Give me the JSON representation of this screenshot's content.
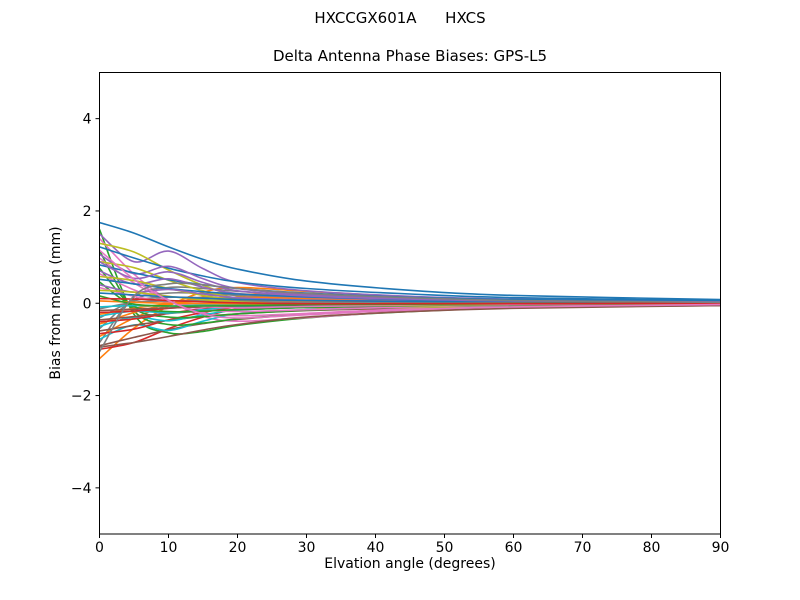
{
  "chart_data": {
    "type": "line",
    "suptitle": "HXCCGX601A      HXCS",
    "title": "Delta Antenna Phase Biases: GPS-L5",
    "xlabel": "Elvation angle (degrees)",
    "ylabel": "Bias from mean (mm)",
    "xlim": [
      0,
      90
    ],
    "ylim": [
      -5,
      5
    ],
    "xticks": [
      0,
      10,
      20,
      30,
      40,
      50,
      60,
      70,
      80,
      90
    ],
    "yticks": [
      -4,
      -2,
      0,
      2,
      4
    ],
    "grid": false,
    "legend": "none",
    "axis_color": "#000000",
    "background": "#ffffff",
    "line_width": 1.6,
    "x": [
      0,
      5,
      10,
      15,
      20,
      30,
      45,
      60,
      90
    ],
    "series": [
      {
        "name": "line-01",
        "color": "#1f77b4",
        "values": [
          1.75,
          1.52,
          1.22,
          0.95,
          0.74,
          0.48,
          0.28,
          0.17,
          0.08
        ]
      },
      {
        "name": "line-02",
        "color": "#ff7f0e",
        "values": [
          -1.2,
          -0.54,
          -0.06,
          0.24,
          0.34,
          0.26,
          0.14,
          0.08,
          0.04
        ]
      },
      {
        "name": "line-03",
        "color": "#2ca02c",
        "values": [
          1.6,
          -0.24,
          -0.64,
          -0.61,
          -0.48,
          -0.32,
          -0.18,
          -0.1,
          -0.03
        ]
      },
      {
        "name": "line-04",
        "color": "#d62728",
        "values": [
          -1.0,
          -0.85,
          -0.55,
          -0.3,
          -0.12,
          0.06,
          0.1,
          0.05,
          0.02
        ]
      },
      {
        "name": "line-05",
        "color": "#9467bd",
        "values": [
          1.5,
          0.9,
          1.13,
          0.75,
          0.45,
          0.27,
          0.15,
          0.09,
          0.05
        ]
      },
      {
        "name": "line-06",
        "color": "#8c564b",
        "values": [
          -0.92,
          -0.74,
          -0.57,
          -0.44,
          -0.35,
          -0.24,
          -0.15,
          -0.09,
          -0.05
        ]
      },
      {
        "name": "line-07",
        "color": "#e377c2",
        "values": [
          1.4,
          0.63,
          0.07,
          -0.28,
          -0.39,
          -0.31,
          -0.17,
          -0.1,
          -0.04
        ]
      },
      {
        "name": "line-08",
        "color": "#7f7f7f",
        "values": [
          -0.85,
          0.13,
          0.34,
          0.32,
          0.26,
          0.17,
          0.09,
          0.05,
          0.02
        ]
      },
      {
        "name": "line-09",
        "color": "#bcbd22",
        "values": [
          1.3,
          1.11,
          0.72,
          0.39,
          0.16,
          -0.08,
          -0.13,
          -0.07,
          -0.03
        ]
      },
      {
        "name": "line-10",
        "color": "#17becf",
        "values": [
          -0.78,
          -0.47,
          -0.59,
          -0.39,
          -0.23,
          -0.14,
          -0.08,
          -0.05,
          -0.02
        ]
      },
      {
        "name": "line-11",
        "color": "#1f77b4",
        "values": [
          1.22,
          0.98,
          0.76,
          0.59,
          0.46,
          0.32,
          0.2,
          0.12,
          0.06
        ]
      },
      {
        "name": "line-12",
        "color": "#ff7f0e",
        "values": [
          -0.72,
          -0.32,
          -0.04,
          0.14,
          0.2,
          0.16,
          0.09,
          0.05,
          0.02
        ]
      },
      {
        "name": "line-13",
        "color": "#2ca02c",
        "values": [
          1.14,
          -0.17,
          -0.46,
          -0.43,
          -0.34,
          -0.23,
          -0.13,
          -0.07,
          -0.02
        ]
      },
      {
        "name": "line-14",
        "color": "#d62728",
        "values": [
          -0.66,
          -0.56,
          -0.36,
          -0.2,
          -0.08,
          0.04,
          0.07,
          0.03,
          0.01
        ]
      },
      {
        "name": "line-15",
        "color": "#9467bd",
        "values": [
          1.06,
          0.64,
          0.8,
          0.53,
          0.32,
          0.19,
          0.11,
          0.06,
          0.03
        ]
      },
      {
        "name": "line-16",
        "color": "#8c564b",
        "values": [
          -0.6,
          -0.48,
          -0.37,
          -0.29,
          -0.23,
          -0.16,
          -0.1,
          -0.06,
          -0.03
        ]
      },
      {
        "name": "line-17",
        "color": "#e377c2",
        "values": [
          0.98,
          0.44,
          0.05,
          -0.2,
          -0.27,
          -0.22,
          -0.12,
          -0.07,
          -0.03
        ]
      },
      {
        "name": "line-18",
        "color": "#7f7f7f",
        "values": [
          -0.55,
          0.08,
          0.22,
          0.21,
          0.17,
          0.11,
          0.06,
          0.03,
          0.01
        ]
      },
      {
        "name": "line-19",
        "color": "#bcbd22",
        "values": [
          0.9,
          0.77,
          0.5,
          0.27,
          0.11,
          -0.05,
          -0.09,
          -0.05,
          -0.02
        ]
      },
      {
        "name": "line-20",
        "color": "#17becf",
        "values": [
          -0.5,
          -0.3,
          -0.38,
          -0.25,
          -0.15,
          -0.09,
          -0.05,
          -0.03,
          -0.02
        ]
      },
      {
        "name": "line-21",
        "color": "#1f77b4",
        "values": [
          0.83,
          0.66,
          0.51,
          0.4,
          0.32,
          0.22,
          0.13,
          0.08,
          0.04
        ]
      },
      {
        "name": "line-22",
        "color": "#ff7f0e",
        "values": [
          -0.45,
          -0.2,
          -0.02,
          0.09,
          0.13,
          0.1,
          0.05,
          0.03,
          0.01
        ]
      },
      {
        "name": "line-23",
        "color": "#2ca02c",
        "values": [
          0.76,
          -0.11,
          -0.3,
          -0.29,
          -0.23,
          -0.15,
          -0.08,
          -0.05,
          -0.02
        ]
      },
      {
        "name": "line-24",
        "color": "#d62728",
        "values": [
          -0.4,
          -0.34,
          -0.22,
          -0.12,
          -0.05,
          0.02,
          0.04,
          0.02,
          0.01
        ]
      },
      {
        "name": "line-25",
        "color": "#9467bd",
        "values": [
          0.7,
          0.42,
          0.53,
          0.35,
          0.21,
          0.13,
          0.07,
          0.04,
          0.02
        ]
      },
      {
        "name": "line-26",
        "color": "#8c564b",
        "values": [
          -0.36,
          -0.29,
          -0.22,
          -0.17,
          -0.14,
          -0.09,
          -0.06,
          -0.04,
          -0.02
        ]
      },
      {
        "name": "line-27",
        "color": "#e377c2",
        "values": [
          0.64,
          0.29,
          0.03,
          -0.13,
          -0.18,
          -0.14,
          -0.08,
          -0.04,
          -0.02
        ]
      },
      {
        "name": "line-28",
        "color": "#7f7f7f",
        "values": [
          -0.32,
          0.05,
          0.13,
          0.12,
          0.1,
          0.06,
          0.04,
          0.02,
          0.01
        ]
      },
      {
        "name": "line-29",
        "color": "#bcbd22",
        "values": [
          0.58,
          0.49,
          0.32,
          0.17,
          0.07,
          -0.03,
          -0.06,
          -0.03,
          -0.01
        ]
      },
      {
        "name": "line-30",
        "color": "#17becf",
        "values": [
          -0.28,
          -0.17,
          -0.21,
          -0.14,
          -0.08,
          -0.05,
          -0.03,
          -0.02,
          -0.01
        ]
      },
      {
        "name": "line-31",
        "color": "#1f77b4",
        "values": [
          0.52,
          0.42,
          0.32,
          0.25,
          0.2,
          0.14,
          0.08,
          0.05,
          0.03
        ]
      },
      {
        "name": "line-32",
        "color": "#ff7f0e",
        "values": [
          -0.24,
          -0.11,
          -0.01,
          0.05,
          0.07,
          0.05,
          0.03,
          0.02,
          0.01
        ]
      },
      {
        "name": "line-33",
        "color": "#2ca02c",
        "values": [
          0.46,
          -0.07,
          -0.18,
          -0.17,
          -0.14,
          -0.09,
          -0.05,
          -0.03,
          -0.01
        ]
      },
      {
        "name": "line-34",
        "color": "#d62728",
        "values": [
          -0.2,
          -0.17,
          -0.11,
          -0.06,
          -0.02,
          0.01,
          0.02,
          0.01,
          0.0
        ]
      },
      {
        "name": "line-35",
        "color": "#9467bd",
        "values": [
          0.4,
          0.24,
          0.3,
          0.2,
          0.12,
          0.07,
          0.04,
          0.02,
          0.01
        ]
      },
      {
        "name": "line-36",
        "color": "#8c564b",
        "values": [
          -0.16,
          -0.13,
          -0.1,
          -0.08,
          -0.06,
          -0.04,
          -0.03,
          -0.02,
          -0.01
        ]
      },
      {
        "name": "line-37",
        "color": "#e377c2",
        "values": [
          0.34,
          0.15,
          0.02,
          -0.07,
          -0.1,
          -0.07,
          -0.04,
          -0.02,
          -0.01
        ]
      },
      {
        "name": "line-38",
        "color": "#7f7f7f",
        "values": [
          -0.12,
          0.02,
          0.05,
          0.05,
          0.04,
          0.02,
          0.01,
          0.01,
          0.0
        ]
      },
      {
        "name": "line-39",
        "color": "#bcbd22",
        "values": [
          0.28,
          0.24,
          0.15,
          0.08,
          0.03,
          -0.02,
          -0.03,
          -0.01,
          -0.01
        ]
      },
      {
        "name": "line-40",
        "color": "#17becf",
        "values": [
          -0.08,
          -0.05,
          -0.06,
          -0.04,
          -0.02,
          -0.01,
          -0.01,
          0.0,
          0.0
        ]
      },
      {
        "name": "line-41",
        "color": "#1f77b4",
        "values": [
          0.22,
          0.18,
          0.14,
          0.11,
          0.08,
          0.06,
          0.04,
          0.02,
          0.01
        ]
      },
      {
        "name": "line-42",
        "color": "#ff7f0e",
        "values": [
          0.05,
          0.02,
          0.0,
          -0.01,
          -0.01,
          -0.01,
          -0.01,
          0.0,
          0.0
        ]
      },
      {
        "name": "line-43",
        "color": "#2ca02c",
        "values": [
          0.16,
          -0.02,
          -0.06,
          -0.06,
          -0.05,
          -0.03,
          -0.02,
          -0.01,
          0.0
        ]
      },
      {
        "name": "line-44",
        "color": "#d62728",
        "values": [
          0.1,
          0.09,
          0.06,
          0.03,
          0.01,
          -0.01,
          -0.01,
          -0.01,
          0.0
        ]
      },
      {
        "name": "line-45",
        "color": "#9467bd",
        "values": [
          0.9,
          0.54,
          0.68,
          0.45,
          0.27,
          0.16,
          0.09,
          0.05,
          0.03
        ]
      },
      {
        "name": "line-46",
        "color": "#8c564b",
        "values": [
          -0.95,
          -0.85,
          -0.72,
          -0.58,
          -0.46,
          -0.3,
          -0.18,
          -0.11,
          -0.05
        ]
      },
      {
        "name": "line-47",
        "color": "#e377c2",
        "values": [
          1.15,
          0.52,
          0.06,
          -0.23,
          -0.32,
          -0.25,
          -0.14,
          -0.08,
          -0.03
        ]
      },
      {
        "name": "line-48",
        "color": "#7f7f7f",
        "values": [
          -1.05,
          0.16,
          0.42,
          0.4,
          0.32,
          0.21,
          0.12,
          0.06,
          0.02
        ]
      }
    ]
  }
}
